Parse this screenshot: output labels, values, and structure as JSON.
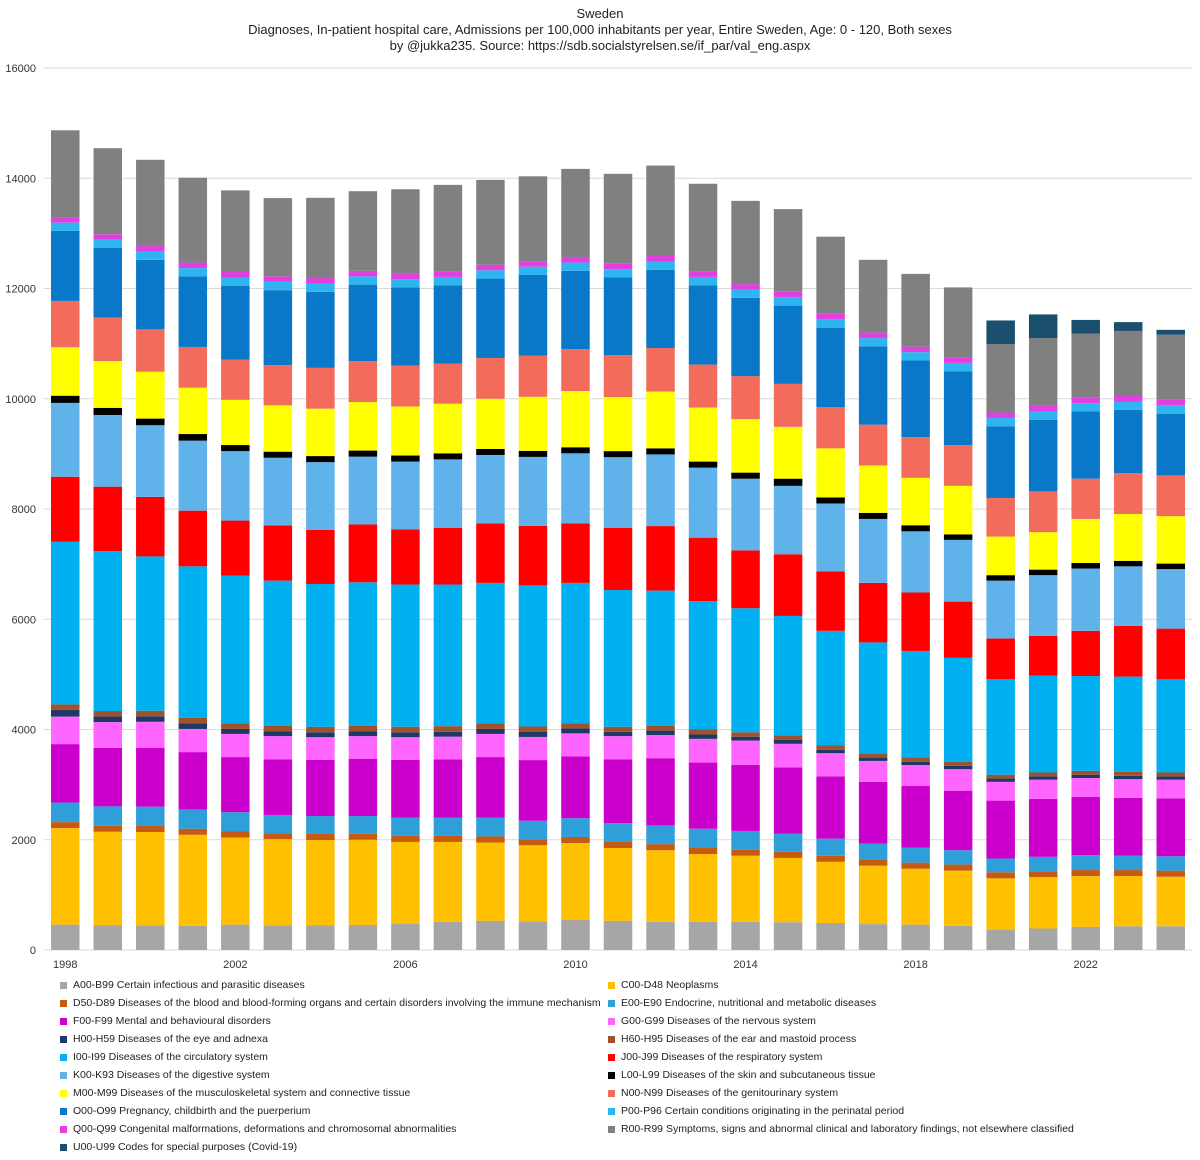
{
  "chart_data": {
    "type": "stacked-bar",
    "title": "Sweden",
    "subtitle": "Diagnoses, In-patient hospital care, Admissions per 100,000 inhabitants per year, Entire Sweden, Age: 0 - 120, Both sexes",
    "credit": "by @jukka235. Source: https://sdb.socialstyrelsen.se/if_par/val_eng.aspx",
    "xlabel": "",
    "ylabel": "",
    "ylim": [
      0,
      16000
    ],
    "yticks": [
      "0",
      "2000",
      "4000",
      "6000",
      "8000",
      "10000",
      "12000",
      "14000",
      "16000"
    ],
    "grid": true,
    "legend_position": "bottom",
    "categories": [
      "1998",
      "1999",
      "2000",
      "2001",
      "2002",
      "2003",
      "2004",
      "2005",
      "2006",
      "2007",
      "2008",
      "2009",
      "2010",
      "2011",
      "2012",
      "2013",
      "2014",
      "2015",
      "2016",
      "2017",
      "2018",
      "2019",
      "2020",
      "2021",
      "2022",
      "2023",
      "2024"
    ],
    "xtick_labels": [
      "1998",
      "",
      "",
      "",
      "2002",
      "",
      "",
      "",
      "2006",
      "",
      "",
      "",
      "2010",
      "",
      "",
      "",
      "2014",
      "",
      "",
      "",
      "2018",
      "",
      "",
      "",
      "2022",
      "",
      ""
    ],
    "series": [
      {
        "name": "A00-B99 Certain infectious and parasitic diseases",
        "color": "#a6a6a6",
        "values": [
          460,
          445,
          450,
          440,
          460,
          450,
          445,
          455,
          485,
          510,
          530,
          520,
          550,
          530,
          510,
          510,
          510,
          505,
          490,
          470,
          460,
          440,
          370,
          390,
          420,
          430,
          430
        ]
      },
      {
        "name": "C00-D48 Neoplasms",
        "color": "#ffc000",
        "values": [
          1750,
          1700,
          1690,
          1650,
          1580,
          1560,
          1550,
          1545,
          1475,
          1450,
          1420,
          1380,
          1390,
          1320,
          1300,
          1230,
          1200,
          1165,
          1110,
          1060,
          1015,
          1000,
          930,
          930,
          920,
          910,
          900
        ]
      },
      {
        "name": "D50-D89 Diseases of the blood and blood-forming organs and certain disorders involving the immune mechanism",
        "color": "#c55a11",
        "values": [
          110,
          110,
          110,
          110,
          110,
          110,
          110,
          110,
          110,
          110,
          110,
          110,
          110,
          110,
          110,
          110,
          110,
          110,
          110,
          110,
          110,
          110,
          110,
          110,
          110,
          110,
          110
        ]
      },
      {
        "name": "E00-E90 Endocrine, nutritional and metabolic diseases",
        "color": "#2e9fd8",
        "values": [
          355,
          350,
          350,
          350,
          350,
          330,
          325,
          320,
          330,
          330,
          340,
          335,
          340,
          340,
          340,
          350,
          340,
          330,
          310,
          290,
          270,
          260,
          250,
          260,
          270,
          260,
          260
        ]
      },
      {
        "name": "F00-F99 Mental and behavioural disorders",
        "color": "#cc00cc",
        "values": [
          1060,
          1060,
          1070,
          1040,
          1000,
          1010,
          1020,
          1040,
          1050,
          1060,
          1100,
          1100,
          1120,
          1160,
          1220,
          1200,
          1200,
          1200,
          1130,
          1120,
          1120,
          1080,
          1050,
          1050,
          1060,
          1050,
          1050
        ]
      },
      {
        "name": "G00-G99 Diseases of the nervous system",
        "color": "#ff66ff",
        "values": [
          500,
          470,
          470,
          420,
          420,
          420,
          410,
          410,
          410,
          410,
          420,
          420,
          420,
          420,
          420,
          430,
          440,
          430,
          420,
          380,
          380,
          390,
          340,
          350,
          340,
          340,
          340
        ]
      },
      {
        "name": "H00-H59 Diseases of the eye and adnexa",
        "color": "#1f3864",
        "values": [
          120,
          100,
          100,
          100,
          90,
          90,
          90,
          90,
          90,
          90,
          90,
          90,
          90,
          80,
          80,
          80,
          70,
          70,
          60,
          60,
          60,
          60,
          60,
          60,
          60,
          60,
          60
        ]
      },
      {
        "name": "H60-H95 Diseases of the ear and mastoid process",
        "color": "#a0522d",
        "values": [
          100,
          100,
          100,
          100,
          100,
          100,
          100,
          100,
          100,
          100,
          100,
          100,
          90,
          90,
          90,
          90,
          80,
          80,
          80,
          80,
          80,
          70,
          70,
          70,
          70,
          70,
          70
        ]
      },
      {
        "name": "I00-I99 Diseases of the circulatory system",
        "color": "#00b0f0",
        "values": [
          2950,
          2900,
          2800,
          2750,
          2680,
          2630,
          2590,
          2600,
          2580,
          2570,
          2550,
          2560,
          2550,
          2480,
          2450,
          2330,
          2250,
          2170,
          2080,
          2010,
          1930,
          1890,
          1730,
          1760,
          1720,
          1730,
          1690
        ]
      },
      {
        "name": "J00-J99 Diseases of the respiratory system",
        "color": "#ff0000",
        "values": [
          1180,
          1170,
          1080,
          1010,
          1000,
          1000,
          980,
          1050,
          1000,
          1030,
          1080,
          1080,
          1080,
          1130,
          1170,
          1150,
          1050,
          1120,
          1080,
          1080,
          1060,
          1020,
          740,
          720,
          820,
          920,
          920
        ]
      },
      {
        "name": "K00-K93 Diseases of the digestive system",
        "color": "#5fb3ea",
        "values": [
          1340,
          1300,
          1300,
          1270,
          1260,
          1230,
          1230,
          1230,
          1230,
          1240,
          1240,
          1250,
          1270,
          1280,
          1300,
          1270,
          1300,
          1240,
          1230,
          1160,
          1110,
          1120,
          1050,
          1100,
          1130,
          1080,
          1080
        ]
      },
      {
        "name": "L00-L99 Diseases of the skin and subcutaneous tissue",
        "color": "#000000",
        "values": [
          130,
          130,
          120,
          120,
          110,
          110,
          110,
          110,
          110,
          110,
          110,
          110,
          110,
          110,
          110,
          110,
          110,
          130,
          110,
          110,
          110,
          100,
          100,
          100,
          100,
          100,
          100
        ]
      },
      {
        "name": "M00-M99 Diseases of the musculoskeletal system and connective tissue",
        "color": "#ffff00",
        "values": [
          880,
          850,
          850,
          840,
          820,
          840,
          860,
          880,
          890,
          900,
          910,
          980,
          1020,
          980,
          1030,
          980,
          970,
          940,
          890,
          860,
          860,
          880,
          700,
          680,
          800,
          850,
          860
        ]
      },
      {
        "name": "N00-N99 Diseases of the genitourinary system",
        "color": "#f26b5b",
        "values": [
          840,
          790,
          770,
          740,
          730,
          730,
          740,
          740,
          740,
          730,
          740,
          750,
          760,
          760,
          790,
          780,
          780,
          780,
          750,
          740,
          740,
          740,
          700,
          740,
          730,
          740,
          740
        ]
      },
      {
        "name": "O00-O99 Pregnancy, childbirth and the puerperium",
        "color": "#0a78c8",
        "values": [
          1270,
          1260,
          1260,
          1280,
          1340,
          1360,
          1380,
          1390,
          1420,
          1420,
          1440,
          1460,
          1420,
          1410,
          1420,
          1440,
          1420,
          1420,
          1440,
          1420,
          1390,
          1340,
          1300,
          1300,
          1220,
          1150,
          1120
        ]
      },
      {
        "name": "P00-P96 Certain conditions originating in the perinatal period",
        "color": "#2eb5f0",
        "values": [
          150,
          150,
          150,
          150,
          150,
          150,
          150,
          150,
          150,
          150,
          150,
          150,
          150,
          150,
          150,
          150,
          150,
          150,
          150,
          150,
          150,
          150,
          150,
          150,
          150,
          150,
          150
        ]
      },
      {
        "name": "Q00-Q99 Congenital malformations, deformations and chromosomal abnormalities",
        "color": "#e040e0",
        "values": [
          100,
          100,
          100,
          100,
          100,
          100,
          100,
          100,
          100,
          100,
          100,
          100,
          100,
          100,
          100,
          100,
          100,
          100,
          100,
          100,
          100,
          100,
          100,
          100,
          100,
          100,
          100
        ]
      },
      {
        "name": "R00-R99 Symptoms, signs and abnormal clinical and laboratory findings, not elsewhere classified",
        "color": "#808080",
        "values": [
          1575,
          1560,
          1565,
          1540,
          1480,
          1420,
          1455,
          1445,
          1530,
          1570,
          1540,
          1540,
          1600,
          1630,
          1640,
          1590,
          1510,
          1500,
          1400,
          1320,
          1320,
          1270,
          1240,
          1230,
          1160,
          1180,
          1180
        ]
      },
      {
        "name": "U00-U99 Codes for special purposes (Covid-19)",
        "color": "#1a4f6e",
        "values": [
          0,
          0,
          0,
          0,
          0,
          0,
          0,
          0,
          0,
          0,
          0,
          0,
          0,
          0,
          0,
          0,
          0,
          0,
          0,
          0,
          0,
          0,
          430,
          430,
          250,
          160,
          90
        ]
      }
    ]
  }
}
